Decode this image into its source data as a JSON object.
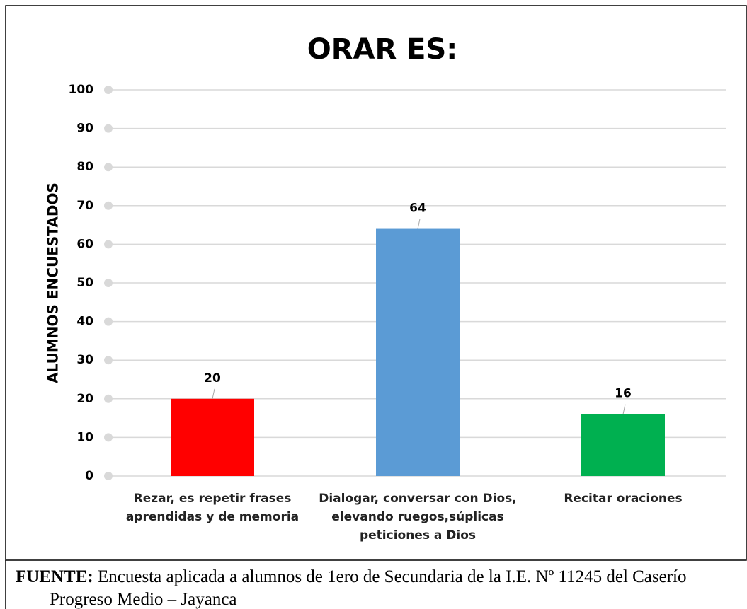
{
  "chart_data": {
    "type": "bar",
    "title": "ORAR ES:",
    "ylabel": "ALUMNOS ENCUESTADOS",
    "categories": [
      "Rezar, es repetir frases aprendidas y de memoria",
      "Dialogar, conversar con Dios, elevando ruegos,súplicas peticiones a Dios",
      "Recitar oraciones"
    ],
    "values": [
      20,
      64,
      16
    ],
    "colors": [
      "#ff0000",
      "#5b9bd5",
      "#00b050"
    ],
    "ylim": [
      0,
      100
    ],
    "yticks": [
      0,
      10,
      20,
      30,
      40,
      50,
      60,
      70,
      80,
      90,
      100
    ],
    "grid": true
  },
  "caption": {
    "label": "FUENTE:",
    "text": "Encuesta aplicada a alumnos de 1ero de Secundaria de la I.E. Nº 11245 del Caserío Progreso Medio – Jayanca"
  }
}
